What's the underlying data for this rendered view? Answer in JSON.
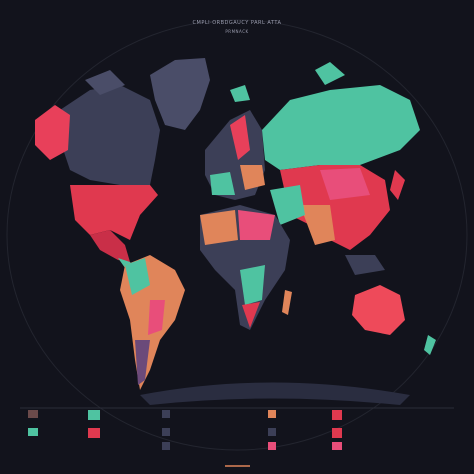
{
  "header": {
    "title": "CMPLI·ORBDGAUCY PARL ATTA",
    "subtitle": "PRMNACK"
  }
}
